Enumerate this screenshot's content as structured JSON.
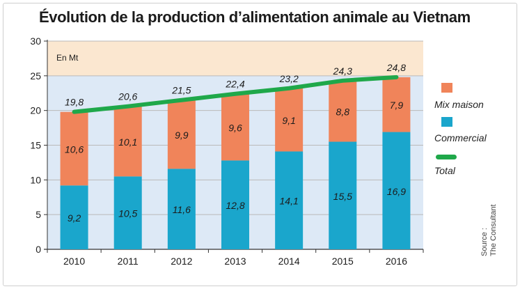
{
  "title": "Évolution de la production d’alimentation animale au Vietnam",
  "unit_label": "En Mt",
  "source": {
    "line1": "Source :",
    "line2": "The Consultant"
  },
  "colors": {
    "mix_maison": "#f0845a",
    "commercial": "#1aa6cc",
    "total": "#1fa84a",
    "plot_bg_upper": "#fbe7d0",
    "plot_bg_lower": "#dde9f6"
  },
  "legend": [
    {
      "label": "Mix maison",
      "color": "#f0845a",
      "kind": "box"
    },
    {
      "label": "Commercial",
      "color": "#1aa6cc",
      "kind": "box"
    },
    {
      "label": "Total",
      "color": "#1fa84a",
      "kind": "line"
    }
  ],
  "chart_data": {
    "type": "bar",
    "stacked": true,
    "categories": [
      "2010",
      "2011",
      "2012",
      "2013",
      "2014",
      "2015",
      "2016"
    ],
    "series": [
      {
        "name": "Commercial",
        "values": [
          9.2,
          10.5,
          11.6,
          12.8,
          14.1,
          15.5,
          16.9
        ],
        "labels": [
          "9,2",
          "10,5",
          "11,6",
          "12,8",
          "14,1",
          "15,5",
          "16,9"
        ]
      },
      {
        "name": "Mix maison",
        "values": [
          10.6,
          10.1,
          9.9,
          9.6,
          9.1,
          8.8,
          7.9
        ],
        "labels": [
          "10,6",
          "10,1",
          "9,9",
          "9,6",
          "9,1",
          "8,8",
          "7,9"
        ]
      }
    ],
    "line": {
      "name": "Total",
      "values": [
        19.8,
        20.6,
        21.5,
        22.4,
        23.2,
        24.3,
        24.8
      ],
      "labels": [
        "19,8",
        "20,6",
        "21,5",
        "22,4",
        "23,2",
        "24,3",
        "24,8"
      ]
    },
    "ylim": [
      0,
      30
    ],
    "yticks": [
      "0",
      "5",
      "10",
      "15",
      "20",
      "25",
      "30"
    ],
    "grid": true,
    "legend_position": "right"
  }
}
